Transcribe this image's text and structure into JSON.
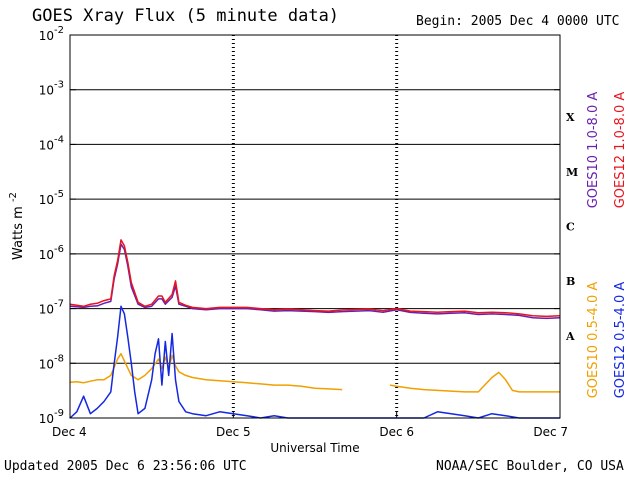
{
  "header": {
    "title": "GOES Xray Flux (5 minute data)",
    "begin": "Begin:  2005 Dec 4 0000 UTC"
  },
  "footer": {
    "updated": "Updated 2005 Dec  6 23:56:06 UTC",
    "credit": "NOAA/SEC Boulder, CO USA"
  },
  "chart_data": {
    "type": "line",
    "title": "GOES Xray Flux (5 minute data)",
    "xlabel": "Universal Time",
    "ylabel": "Watts m-2",
    "ylabel_base": "Watts m",
    "ylabel_exp": "-2",
    "yscale": "log",
    "ylim": [
      1e-09,
      0.01
    ],
    "xlim": [
      0,
      72
    ],
    "x_unit": "hours since 2005 Dec 4 0000 UTC",
    "x_ticks": [
      {
        "x": 0,
        "label": "Dec 4"
      },
      {
        "x": 24,
        "label": "Dec 5"
      },
      {
        "x": 48,
        "label": "Dec 6"
      },
      {
        "x": 72,
        "label": "Dec 7"
      }
    ],
    "y_ticks": [
      {
        "exp": -9,
        "base": "10",
        "sup": "-9"
      },
      {
        "exp": -8,
        "base": "10",
        "sup": "-8"
      },
      {
        "exp": -7,
        "base": "10",
        "sup": "-7"
      },
      {
        "exp": -6,
        "base": "10",
        "sup": "-6"
      },
      {
        "exp": -5,
        "base": "10",
        "sup": "-5"
      },
      {
        "exp": -4,
        "base": "10",
        "sup": "-4"
      },
      {
        "exp": -3,
        "base": "10",
        "sup": "-3"
      },
      {
        "exp": -2,
        "base": "10",
        "sup": "-2"
      }
    ],
    "flare_classes": [
      {
        "label": "A",
        "exp": -8
      },
      {
        "label": "B",
        "exp": -7
      },
      {
        "label": "C",
        "exp": -6
      },
      {
        "label": "M",
        "exp": -5
      },
      {
        "label": "X",
        "exp": -4
      }
    ],
    "grid": "horizontal",
    "legend_position": "right",
    "series": [
      {
        "name": "GOES10 1.0-8.0 A",
        "color": "#6a1fb0",
        "points": [
          [
            0,
            1.1e-07
          ],
          [
            1,
            1.08e-07
          ],
          [
            2,
            1.05e-07
          ],
          [
            3,
            1.1e-07
          ],
          [
            4,
            1.12e-07
          ],
          [
            5,
            1.25e-07
          ],
          [
            6,
            1.35e-07
          ],
          [
            6.5,
            3.5e-07
          ],
          [
            7,
            6.5e-07
          ],
          [
            7.5,
            1.5e-06
          ],
          [
            8,
            1.2e-06
          ],
          [
            8.5,
            6e-07
          ],
          [
            9,
            2.5e-07
          ],
          [
            10,
            1.2e-07
          ],
          [
            11,
            1.05e-07
          ],
          [
            12,
            1.1e-07
          ],
          [
            13,
            1.5e-07
          ],
          [
            13.5,
            1.5e-07
          ],
          [
            14,
            1.2e-07
          ],
          [
            15,
            1.6e-07
          ],
          [
            15.5,
            2.6e-07
          ],
          [
            16,
            1.2e-07
          ],
          [
            17,
            1.1e-07
          ],
          [
            18,
            1e-07
          ],
          [
            20,
            9.5e-08
          ],
          [
            22,
            1e-07
          ],
          [
            24,
            1e-07
          ],
          [
            26,
            1e-07
          ],
          [
            28,
            9.5e-08
          ],
          [
            30,
            9e-08
          ],
          [
            32,
            9.2e-08
          ],
          [
            34,
            9e-08
          ],
          [
            36,
            8.8e-08
          ],
          [
            38,
            8.5e-08
          ],
          [
            40,
            8.8e-08
          ],
          [
            42,
            9e-08
          ],
          [
            44,
            9.2e-08
          ],
          [
            46,
            8.6e-08
          ],
          [
            48,
            9.5e-08
          ],
          [
            50,
            8.5e-08
          ],
          [
            52,
            8.2e-08
          ],
          [
            54,
            8e-08
          ],
          [
            56,
            8.2e-08
          ],
          [
            58,
            8.4e-08
          ],
          [
            60,
            7.8e-08
          ],
          [
            62,
            8e-08
          ],
          [
            64,
            7.8e-08
          ],
          [
            66,
            7.5e-08
          ],
          [
            68,
            6.8e-08
          ],
          [
            70,
            6.6e-08
          ],
          [
            72,
            6.8e-08
          ]
        ]
      },
      {
        "name": "GOES12 1.0-8.0 A",
        "color": "#e8141e",
        "points": [
          [
            0,
            1.2e-07
          ],
          [
            1,
            1.15e-07
          ],
          [
            2,
            1.1e-07
          ],
          [
            3,
            1.2e-07
          ],
          [
            4,
            1.25e-07
          ],
          [
            5,
            1.4e-07
          ],
          [
            6,
            1.5e-07
          ],
          [
            6.5,
            4e-07
          ],
          [
            7,
            7.5e-07
          ],
          [
            7.5,
            1.8e-06
          ],
          [
            8,
            1.4e-06
          ],
          [
            8.5,
            7e-07
          ],
          [
            9,
            3e-07
          ],
          [
            10,
            1.3e-07
          ],
          [
            11,
            1.1e-07
          ],
          [
            12,
            1.2e-07
          ],
          [
            13,
            1.7e-07
          ],
          [
            13.5,
            1.7e-07
          ],
          [
            14,
            1.3e-07
          ],
          [
            15,
            1.8e-07
          ],
          [
            15.5,
            3.2e-07
          ],
          [
            16,
            1.3e-07
          ],
          [
            17,
            1.15e-07
          ],
          [
            18,
            1.05e-07
          ],
          [
            20,
            1e-07
          ],
          [
            22,
            1.05e-07
          ],
          [
            24,
            1.05e-07
          ],
          [
            26,
            1.05e-07
          ],
          [
            28,
            1e-07
          ],
          [
            30,
            9.5e-08
          ],
          [
            32,
            9.8e-08
          ],
          [
            34,
            9.5e-08
          ],
          [
            36,
            9.2e-08
          ],
          [
            38,
            9e-08
          ],
          [
            40,
            9.4e-08
          ],
          [
            42,
            9.6e-08
          ],
          [
            44,
            9.8e-08
          ],
          [
            46,
            9.2e-08
          ],
          [
            48,
            1e-07
          ],
          [
            50,
            9e-08
          ],
          [
            52,
            8.8e-08
          ],
          [
            54,
            8.6e-08
          ],
          [
            56,
            8.8e-08
          ],
          [
            58,
            9e-08
          ],
          [
            60,
            8.4e-08
          ],
          [
            62,
            8.6e-08
          ],
          [
            64,
            8.4e-08
          ],
          [
            66,
            8e-08
          ],
          [
            68,
            7.4e-08
          ],
          [
            70,
            7.2e-08
          ],
          [
            72,
            7.4e-08
          ]
        ]
      },
      {
        "name": "GOES10 0.5-4.0 A",
        "color": "#f0a000",
        "points": [
          [
            0,
            4.5e-09
          ],
          [
            1,
            4.6e-09
          ],
          [
            2,
            4.4e-09
          ],
          [
            3,
            4.7e-09
          ],
          [
            4,
            5e-09
          ],
          [
            5,
            5e-09
          ],
          [
            6,
            6e-09
          ],
          [
            7,
            1.2e-08
          ],
          [
            7.5,
            1.5e-08
          ],
          [
            8,
            1.1e-08
          ],
          [
            9,
            6e-09
          ],
          [
            10,
            5e-09
          ],
          [
            11,
            6e-09
          ],
          [
            12,
            8e-09
          ],
          [
            13,
            1.2e-08
          ],
          [
            13.5,
            8e-09
          ],
          [
            14,
            1.3e-08
          ],
          [
            14.5,
            8e-09
          ],
          [
            15,
            1.4e-08
          ],
          [
            15.5,
            9e-09
          ],
          [
            16,
            7e-09
          ],
          [
            17,
            6e-09
          ],
          [
            18,
            5.5e-09
          ],
          [
            20,
            5e-09
          ],
          [
            22,
            4.8e-09
          ],
          [
            24,
            4.6e-09
          ],
          [
            26,
            4.4e-09
          ],
          [
            28,
            4.2e-09
          ],
          [
            30,
            4e-09
          ],
          [
            32,
            4e-09
          ],
          [
            34,
            3.8e-09
          ],
          [
            36,
            3.5e-09
          ],
          [
            38,
            3.4e-09
          ],
          [
            40,
            3.3e-09
          ],
          [
            42,
            null
          ],
          [
            44,
            null
          ],
          [
            46,
            null
          ],
          [
            47,
            4e-09
          ],
          [
            48,
            3.8e-09
          ],
          [
            50,
            3.5e-09
          ],
          [
            52,
            3.3e-09
          ],
          [
            54,
            3.2e-09
          ],
          [
            56,
            3.1e-09
          ],
          [
            58,
            3e-09
          ],
          [
            60,
            3e-09
          ],
          [
            62,
            5.5e-09
          ],
          [
            63,
            6.8e-09
          ],
          [
            64,
            5e-09
          ],
          [
            65,
            3.2e-09
          ],
          [
            66,
            3e-09
          ],
          [
            68,
            3e-09
          ],
          [
            70,
            3e-09
          ],
          [
            72,
            3e-09
          ]
        ]
      },
      {
        "name": "GOES12 0.5-4.0 A",
        "color": "#1428e0",
        "points": [
          [
            0,
            1e-09
          ],
          [
            1,
            1.3e-09
          ],
          [
            2,
            2.5e-09
          ],
          [
            3,
            1.2e-09
          ],
          [
            4,
            1.5e-09
          ],
          [
            5,
            2e-09
          ],
          [
            6,
            3e-09
          ],
          [
            6.5,
            1e-08
          ],
          [
            7,
            3e-08
          ],
          [
            7.5,
            1.1e-07
          ],
          [
            8,
            8e-08
          ],
          [
            8.5,
            3e-08
          ],
          [
            9,
            1e-08
          ],
          [
            9.5,
            3e-09
          ],
          [
            10,
            1.2e-09
          ],
          [
            11,
            1.5e-09
          ],
          [
            12,
            5e-09
          ],
          [
            12.5,
            1.5e-08
          ],
          [
            13,
            2.8e-08
          ],
          [
            13.5,
            4e-09
          ],
          [
            14,
            2.5e-08
          ],
          [
            14.5,
            6e-09
          ],
          [
            15,
            3.5e-08
          ],
          [
            15.5,
            5e-09
          ],
          [
            16,
            2e-09
          ],
          [
            17,
            1.3e-09
          ],
          [
            18,
            1.2e-09
          ],
          [
            20,
            1.1e-09
          ],
          [
            22,
            1.3e-09
          ],
          [
            24,
            1.2e-09
          ],
          [
            26,
            1.1e-09
          ],
          [
            28,
            1e-09
          ],
          [
            30,
            1.1e-09
          ],
          [
            32,
            1e-09
          ],
          [
            34,
            1e-09
          ],
          [
            36,
            1e-09
          ],
          [
            38,
            1e-09
          ],
          [
            40,
            1e-09
          ],
          [
            42,
            1e-09
          ],
          [
            44,
            1e-09
          ],
          [
            46,
            1e-09
          ],
          [
            48,
            1e-09
          ],
          [
            50,
            1e-09
          ],
          [
            52,
            1e-09
          ],
          [
            54,
            1.3e-09
          ],
          [
            56,
            1.2e-09
          ],
          [
            58,
            1.1e-09
          ],
          [
            60,
            1e-09
          ],
          [
            62,
            1.2e-09
          ],
          [
            64,
            1.1e-09
          ],
          [
            66,
            1e-09
          ],
          [
            68,
            1e-09
          ],
          [
            70,
            1e-09
          ],
          [
            72,
            1e-09
          ]
        ]
      }
    ]
  }
}
